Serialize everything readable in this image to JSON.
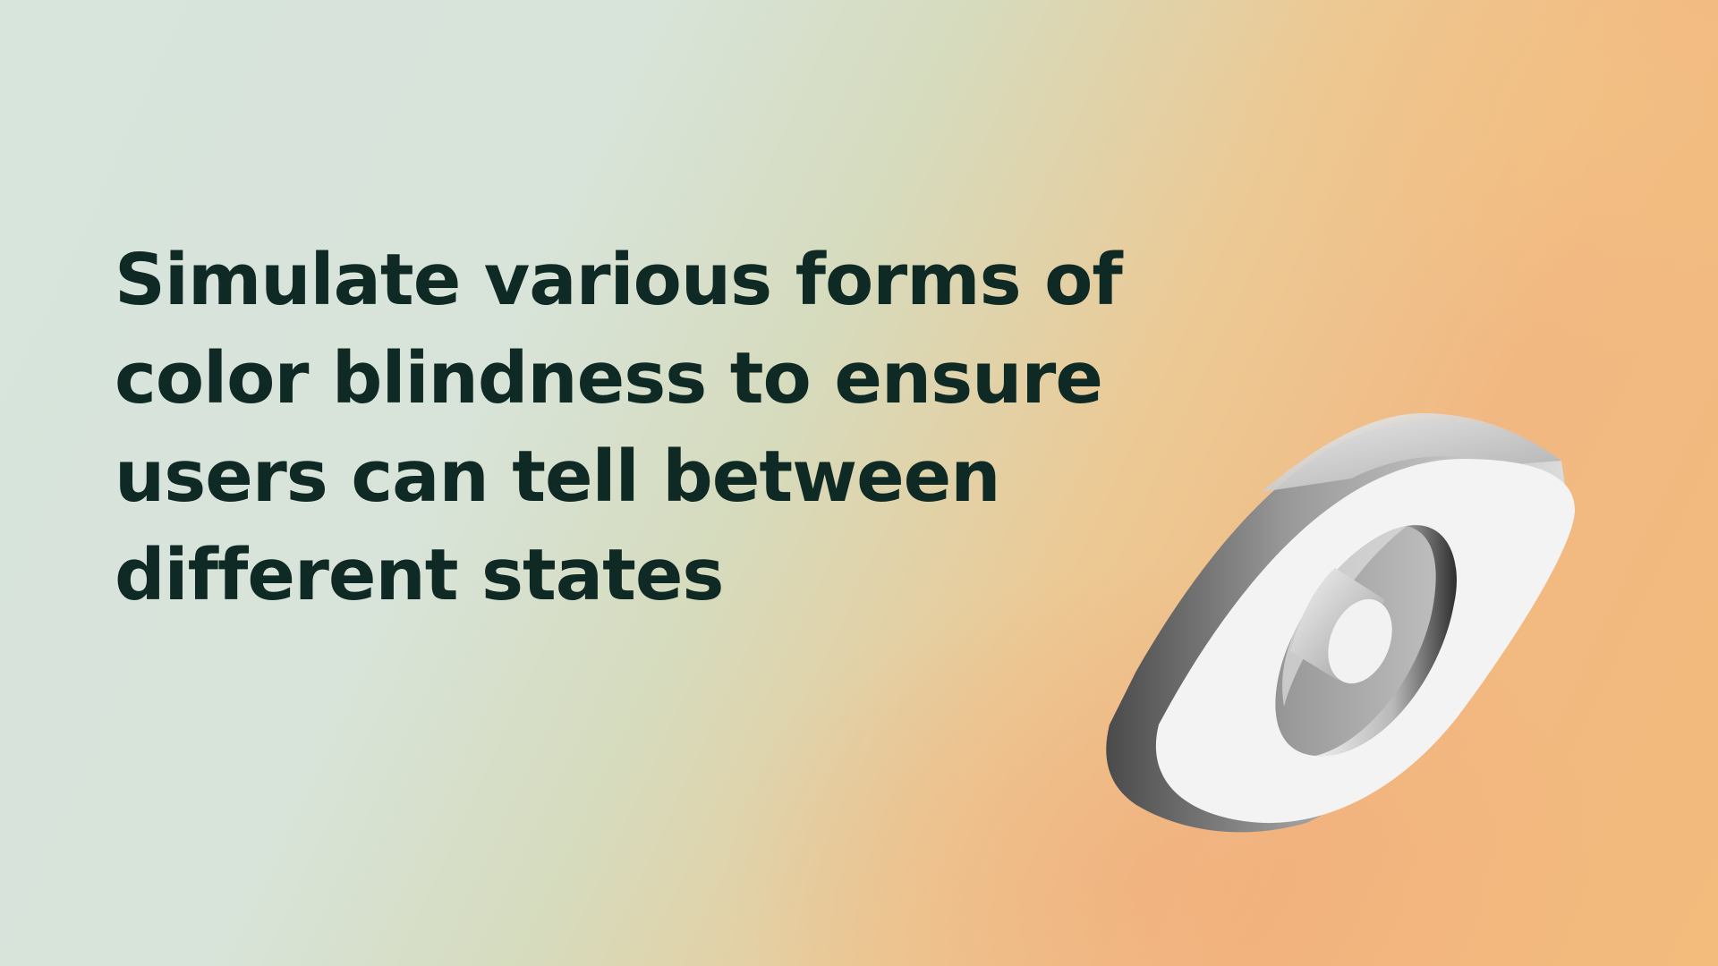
{
  "headline": {
    "line1": "Simulate various forms of",
    "line2": "color blindness to ensure",
    "line3": "users can tell between",
    "line4": "different states"
  },
  "illustration": {
    "icon": "eye-icon"
  },
  "colors": {
    "text": "#0f2a24",
    "background_left": "#d7e5dc",
    "background_right": "#f3bb7c"
  }
}
